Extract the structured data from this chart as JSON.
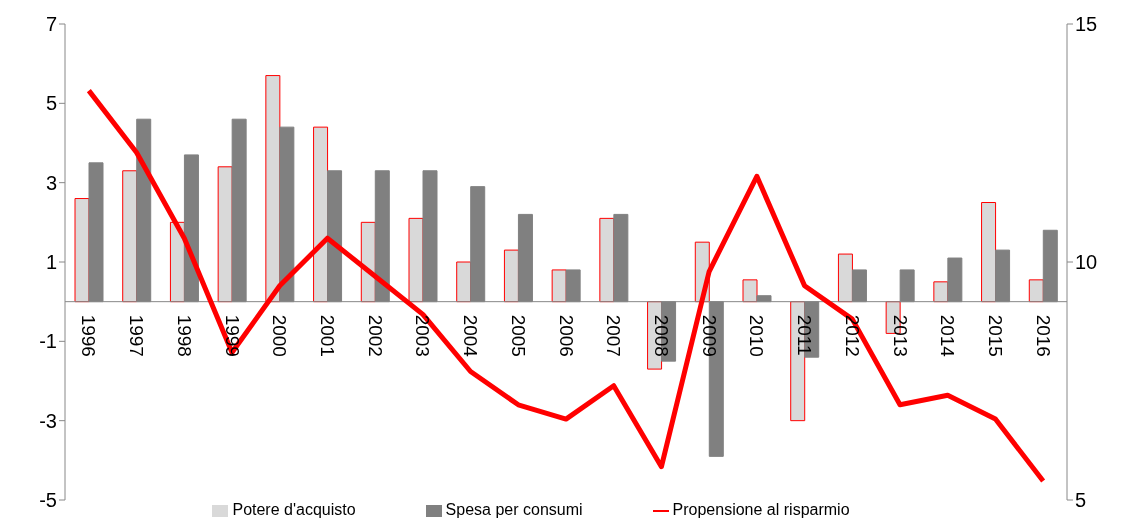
{
  "chart_data": {
    "type": "bar",
    "categories": [
      "1996",
      "1997",
      "1998",
      "1999",
      "2000",
      "2001",
      "2002",
      "2003",
      "2004",
      "2005",
      "2006",
      "2007",
      "2008",
      "2009",
      "2010",
      "2011",
      "2012",
      "2013",
      "2014",
      "2015",
      "2016"
    ],
    "series": [
      {
        "name": "Potere d'acquisto",
        "color": "#d9d9d9",
        "values": [
          2.6,
          3.3,
          2.0,
          3.4,
          5.7,
          4.4,
          2.0,
          2.1,
          1.0,
          1.3,
          0.8,
          2.1,
          -1.7,
          1.5,
          0.55,
          -3.0,
          1.2,
          -0.8,
          0.5,
          2.5,
          0.55
        ]
      },
      {
        "name": "Spesa per consumi",
        "color": "#808080",
        "values": [
          3.5,
          4.6,
          3.7,
          4.6,
          4.4,
          3.3,
          3.3,
          3.3,
          2.9,
          2.2,
          0.8,
          2.2,
          -1.5,
          -3.9,
          0.15,
          -1.4,
          0.8,
          0.8,
          1.1,
          1.3,
          1.8
        ]
      },
      {
        "name": "Propensione al risparmio",
        "type": "line",
        "axis": "y2",
        "color": "#ff0000",
        "values": [
          13.6,
          12.3,
          10.5,
          8.1,
          9.5,
          10.5,
          9.7,
          8.9,
          7.7,
          7.0,
          6.7,
          7.4,
          5.7,
          9.8,
          11.8,
          9.5,
          8.8,
          7.0,
          7.2,
          6.7,
          5.4
        ]
      }
    ],
    "ylim": [
      -5,
      7
    ],
    "yticks": [
      -5,
      -3,
      -1,
      1,
      3,
      5,
      7
    ],
    "y2lim": [
      5,
      15
    ],
    "y2ticks": [
      5,
      10,
      15
    ],
    "legend": "bottom",
    "line_style": "solid",
    "marker": "none"
  }
}
